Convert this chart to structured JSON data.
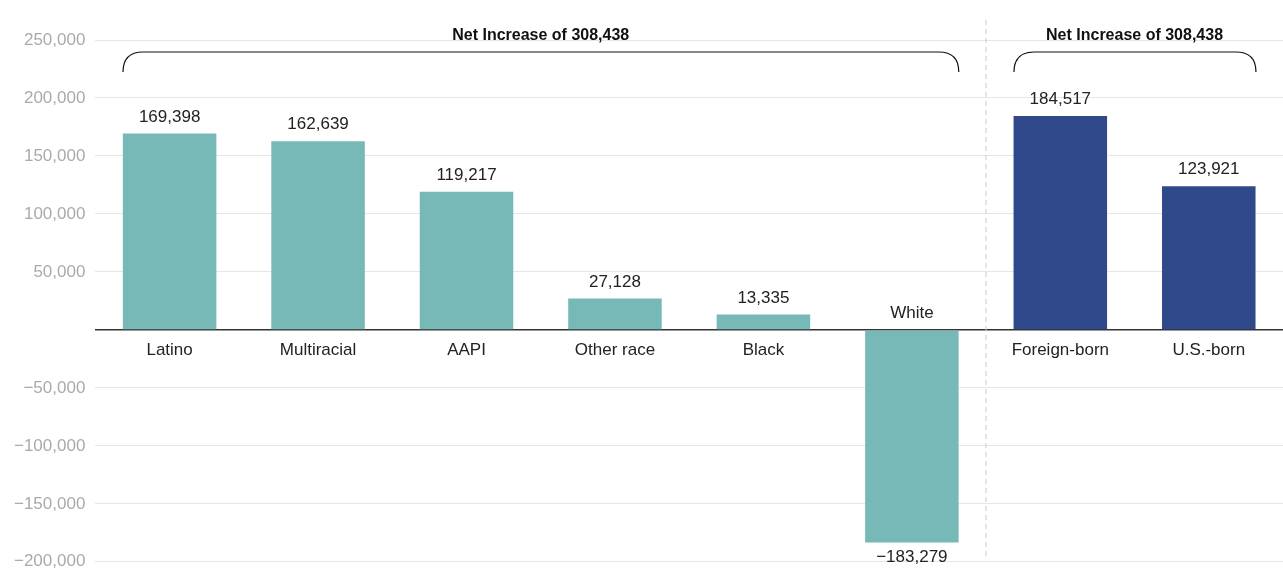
{
  "chart_data": {
    "type": "bar",
    "categories": [
      "Latino",
      "Multiracial",
      "AAPI",
      "Other race",
      "Black",
      "White",
      "Foreign-born",
      "U.S.-born"
    ],
    "values": [
      169398,
      162639,
      119217,
      27128,
      13335,
      -183279,
      184517,
      123921
    ],
    "colors": [
      "#76b9b7",
      "#76b9b7",
      "#76b9b7",
      "#76b9b7",
      "#76b9b7",
      "#76b9b7",
      "#30498a",
      "#30498a"
    ],
    "value_labels": [
      "169,398",
      "162,639",
      "119,217",
      "27,128",
      "13,335",
      "−183,279",
      "184,517",
      "123,921"
    ],
    "ylim": [
      -200000,
      250000
    ],
    "yticks": [
      {
        "value": -200000,
        "label": "−200,000"
      },
      {
        "value": -150000,
        "label": "−150,000"
      },
      {
        "value": -100000,
        "label": "−100,000"
      },
      {
        "value": -50000,
        "label": "−50,000"
      },
      {
        "value": 0,
        "label": null
      },
      {
        "value": 50000,
        "label": "50,000"
      },
      {
        "value": 100000,
        "label": "100,000"
      },
      {
        "value": 150000,
        "label": "150,000"
      },
      {
        "value": 200000,
        "label": "200,000"
      },
      {
        "value": 250000,
        "label": "250,000"
      }
    ],
    "grid": "y",
    "legend": false,
    "annotations": [
      "Net Increase of 308,438",
      "Net Increase of 308,438"
    ]
  }
}
